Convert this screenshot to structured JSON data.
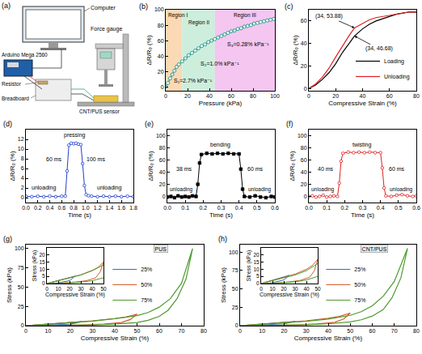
{
  "diagram": {
    "panel": "(a)",
    "labels": {
      "computer": "Computer",
      "board": "Arduino Mega 2560",
      "resistor": "Resistor",
      "breadboard": "Breadboard",
      "gauge": "Force gauge",
      "sensor": "CNT/PUS sensor"
    }
  },
  "chart_data": [
    {
      "panel": "(b)",
      "type": "line",
      "marker": "circle",
      "color": "#2a9d8f",
      "x_label": "Pressure (kPa)",
      "y_label": "ΔR/R₀ (%)",
      "xlim": [
        0,
        100
      ],
      "xticks": [
        0,
        20,
        40,
        60,
        80,
        100
      ],
      "ylim": [
        -5,
        100
      ],
      "yticks": [
        0,
        20,
        40,
        60,
        80,
        100
      ],
      "x": [
        0,
        2,
        4,
        6,
        8,
        10,
        12,
        15,
        18,
        21,
        24,
        27,
        30,
        33,
        36,
        39,
        42,
        45,
        48,
        51,
        54,
        57,
        60,
        63,
        66,
        69,
        72,
        75,
        78,
        81,
        84,
        87,
        90,
        93,
        96,
        99
      ],
      "values": [
        0,
        5,
        11,
        16,
        21,
        26,
        29,
        33,
        37,
        41,
        44,
        47,
        50,
        53,
        55,
        58,
        60,
        62,
        64,
        66,
        68,
        70,
        72,
        73,
        75,
        76,
        78,
        79,
        80,
        82,
        83,
        84,
        85,
        86,
        87,
        88
      ],
      "regions": [
        {
          "label": "Region I",
          "from": 0,
          "to": 15,
          "color": "#fbd9b5",
          "slope": "S₁=2.7% kPa⁻¹"
        },
        {
          "label": "Region II",
          "from": 15,
          "to": 45,
          "color": "#cdeedd",
          "slope": "S₂=1.0% kPa⁻¹"
        },
        {
          "label": "Region III",
          "from": 45,
          "to": 100,
          "color": "#f4c6f0",
          "slope": "S₃=0.28% kPa⁻¹"
        }
      ]
    },
    {
      "panel": "(c)",
      "type": "line",
      "x_label": "Compressive Strain (%)",
      "y_label": "ΔR/R₀ (%)",
      "xlim": [
        0,
        80
      ],
      "xticks": [
        0,
        20,
        40,
        60,
        80
      ],
      "ylim": [
        -2,
        70
      ],
      "yticks": [
        0,
        20,
        40,
        60
      ],
      "legend": "bottom right",
      "x": [
        0,
        5,
        10,
        15,
        20,
        25,
        30,
        34,
        40,
        45,
        50,
        55,
        60,
        65,
        70,
        75,
        80
      ],
      "series": [
        {
          "name": "Loading",
          "color": "#000000",
          "values": [
            0,
            3,
            8,
            14,
            22,
            32,
            40,
            46.68,
            53,
            57,
            60,
            62,
            64,
            66,
            67,
            68,
            68
          ]
        },
        {
          "name": "Unloading",
          "color": "#e02020",
          "values": [
            0,
            4,
            10,
            18,
            28,
            38,
            47,
            53.88,
            58,
            61,
            63,
            64,
            65,
            66,
            67,
            68,
            68
          ]
        }
      ],
      "points": [
        {
          "x": 34,
          "y": 53.88,
          "label": "(34, 53.88)"
        },
        {
          "x": 34,
          "y": 46.68,
          "label": "(34, 46.68)"
        }
      ]
    },
    {
      "panel": "(d)",
      "type": "line",
      "marker": "circle",
      "color": "#2040d0",
      "x_label": "Time (s)",
      "y_label": "ΔR/R₀ (%)",
      "xlim": [
        0,
        1.8
      ],
      "xticks": [
        {
          "value": 0,
          "label": "0.0"
        },
        0.2,
        0.4,
        0.6,
        0.8,
        {
          "value": 1,
          "label": "1.0"
        },
        1.2,
        1.4,
        1.6,
        1.8
      ],
      "ylim": [
        -1,
        14
      ],
      "yticks": [
        0,
        2,
        4,
        6,
        8,
        10,
        12
      ],
      "x": [
        0,
        0.1,
        0.2,
        0.3,
        0.4,
        0.5,
        0.6,
        0.66,
        0.69,
        0.72,
        0.76,
        0.8,
        0.84,
        0.88,
        0.92,
        0.95,
        0.98,
        1.01,
        1.05,
        1.1,
        1.2,
        1.3,
        1.4,
        1.5,
        1.6,
        1.7,
        1.8
      ],
      "values": [
        0.3,
        0.2,
        0.3,
        0.2,
        0.3,
        0.2,
        0.3,
        0.3,
        5.5,
        10.8,
        11.2,
        11.1,
        11.2,
        11.0,
        10.9,
        7,
        2.5,
        0.6,
        0.4,
        0.3,
        0.2,
        0.3,
        0.2,
        0.3,
        0.2,
        0.3,
        0.2
      ],
      "state_labels": {
        "before": "unloading",
        "during": "pressing",
        "after": "unloading"
      },
      "time_labels": {
        "rise": "60 ms",
        "fall": "100 ms"
      }
    },
    {
      "panel": "(e)",
      "type": "line",
      "marker": "square",
      "color": "#000000",
      "x_label": "Time (s)",
      "y_label": "ΔR/R₀ (%)",
      "xlim": [
        0,
        0.6
      ],
      "xticks": [
        {
          "value": 0,
          "label": "0.0"
        },
        0.1,
        0.2,
        0.3,
        0.4,
        0.5,
        0.6
      ],
      "ylim": [
        -10,
        110
      ],
      "yticks": [
        0,
        20,
        40,
        60,
        80,
        100
      ],
      "x": [
        0,
        0.02,
        0.04,
        0.06,
        0.08,
        0.1,
        0.12,
        0.14,
        0.16,
        0.17,
        0.18,
        0.19,
        0.22,
        0.25,
        0.28,
        0.31,
        0.34,
        0.37,
        0.4,
        0.41,
        0.42,
        0.43,
        0.46,
        0.49,
        0.52,
        0.55,
        0.58,
        0.6
      ],
      "values": [
        -1,
        0,
        -2,
        1,
        -1,
        0,
        -1,
        1,
        0,
        20,
        55,
        69,
        71,
        70,
        71,
        70,
        71,
        70,
        70,
        45,
        12,
        0,
        -1,
        1,
        -1,
        -2,
        0,
        -1
      ],
      "state_labels": {
        "before": "unloading",
        "during": "bending",
        "after": "unloading"
      },
      "time_labels": {
        "rise": "38 ms",
        "fall": "60 ms"
      }
    },
    {
      "panel": "(f)",
      "type": "line",
      "marker": "circle",
      "color": "#e02020",
      "x_label": "Time (s)",
      "y_label": "ΔR/R₀ (%)",
      "xlim": [
        0,
        0.6
      ],
      "xticks": [
        {
          "value": 0,
          "label": "0.0"
        },
        0.1,
        0.2,
        0.3,
        0.4,
        0.5,
        0.6
      ],
      "ylim": [
        -10,
        110
      ],
      "yticks": [
        0,
        20,
        40,
        60,
        80,
        100
      ],
      "x": [
        0,
        0.02,
        0.04,
        0.06,
        0.08,
        0.1,
        0.12,
        0.14,
        0.16,
        0.17,
        0.18,
        0.19,
        0.22,
        0.25,
        0.28,
        0.31,
        0.34,
        0.37,
        0.4,
        0.41,
        0.42,
        0.43,
        0.46,
        0.49,
        0.52,
        0.55,
        0.58,
        0.6
      ],
      "values": [
        0,
        1,
        -1,
        0,
        2,
        -1,
        0,
        1,
        0,
        22,
        58,
        71,
        73,
        72,
        73,
        72,
        73,
        72,
        72,
        47,
        14,
        1,
        0,
        2,
        3,
        1,
        0,
        1
      ],
      "state_labels": {
        "before": "unloading",
        "during": "twisting",
        "after": "unloading"
      },
      "time_labels": {
        "rise": "40 ms",
        "fall": "60 ms"
      }
    },
    {
      "panel": "(g)",
      "type": "line",
      "x_label": "Compressive Strain (%)",
      "y_label": "Stress (kPa)",
      "xlim": [
        0,
        80
      ],
      "xticks": [
        0,
        10,
        20,
        30,
        40,
        50,
        60,
        70,
        80
      ],
      "ylim": [
        0,
        105
      ],
      "yticks": [
        0,
        25,
        50,
        75,
        100
      ],
      "legend": "right",
      "photo_label": "PUS",
      "series": [
        {
          "name": "25%",
          "color": "#2f6fbf",
          "x": [
            0,
            10,
            20,
            25,
            20,
            10,
            3
          ],
          "values": [
            0,
            2.2,
            4.2,
            5.2,
            2,
            0.5,
            0
          ]
        },
        {
          "name": "50%",
          "color": "#d0602a",
          "x": [
            0,
            10,
            20,
            30,
            40,
            45,
            50,
            47,
            43,
            35,
            25,
            15,
            5
          ],
          "values": [
            0,
            2.1,
            4.1,
            6.1,
            9.2,
            11.2,
            15,
            8,
            4,
            2,
            1,
            0.4,
            0
          ]
        },
        {
          "name": "75%",
          "color": "#4f9a2f",
          "x": [
            0,
            10,
            20,
            30,
            40,
            50,
            55,
            60,
            65,
            70,
            75,
            72,
            68,
            64,
            60,
            55,
            50,
            40,
            30,
            20,
            10,
            5
          ],
          "values": [
            0,
            2,
            4,
            6,
            9,
            13,
            17,
            24,
            35,
            55,
            100,
            60,
            35,
            20,
            12,
            7,
            4,
            2,
            1,
            0.5,
            0.2,
            0
          ]
        }
      ],
      "inset": {
        "x_label": "Compressive Strain (%)",
        "y_label": "Stress (kPa)",
        "xlim": [
          0,
          50
        ],
        "xticks": [
          0,
          10,
          20,
          30,
          40,
          50
        ],
        "ylim": [
          0,
          25
        ],
        "yticks": [
          0,
          5,
          10,
          15,
          20
        ]
      }
    },
    {
      "panel": "(h)",
      "type": "line",
      "x_label": "Compressive Strain (%)",
      "y_label": "Stress (kPa)",
      "xlim": [
        0,
        80
      ],
      "xticks": [
        0,
        10,
        20,
        30,
        40,
        50,
        60,
        70,
        80
      ],
      "ylim": [
        0,
        110
      ],
      "yticks": [
        0,
        25,
        50,
        75,
        100
      ],
      "legend": "right",
      "photo_label": "CNT/PUS",
      "series": [
        {
          "name": "25%",
          "color": "#2f6fbf",
          "x": [
            0,
            10,
            20,
            25,
            20,
            10,
            3
          ],
          "values": [
            0,
            2.3,
            4.5,
            5.8,
            2.5,
            0.6,
            0
          ]
        },
        {
          "name": "50%",
          "color": "#d0602a",
          "x": [
            0,
            10,
            20,
            30,
            40,
            45,
            50,
            47,
            43,
            35,
            25,
            15,
            5
          ],
          "values": [
            0,
            2.2,
            4.4,
            6.6,
            10,
            12.5,
            17,
            9,
            4.5,
            2.3,
            1.1,
            0.5,
            0
          ]
        },
        {
          "name": "75%",
          "color": "#4f9a2f",
          "x": [
            0,
            10,
            20,
            30,
            40,
            50,
            55,
            60,
            65,
            70,
            76,
            73,
            69,
            65,
            60,
            55,
            50,
            40,
            30,
            20,
            10,
            4
          ],
          "values": [
            0,
            2,
            4,
            6,
            9,
            14,
            19,
            27,
            40,
            60,
            105,
            65,
            38,
            22,
            13,
            8,
            5,
            2.5,
            1.2,
            0.6,
            0.2,
            0
          ]
        }
      ],
      "inset": {
        "x_label": "Compressive Strain (%)",
        "y_label": "Stress (kPa)",
        "xlim": [
          0,
          50
        ],
        "xticks": [
          0,
          10,
          20,
          30,
          40,
          50
        ],
        "ylim": [
          0,
          25
        ],
        "yticks": [
          0,
          5,
          10,
          15,
          20
        ]
      }
    }
  ]
}
